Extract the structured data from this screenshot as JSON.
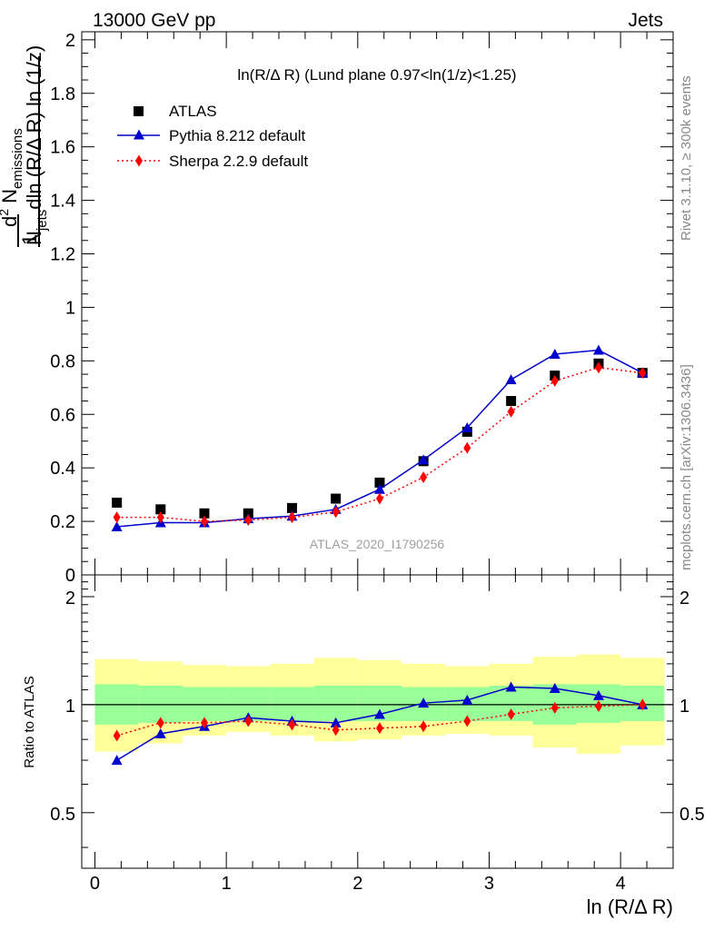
{
  "header": {
    "energy": "13000 GeV pp",
    "category": "Jets"
  },
  "side_labels": {
    "rivet": "Rivet 3.1.10, ≥ 300k events",
    "mcplots": "mcplots.cern.ch [arXiv:1306.3436]"
  },
  "watermark": "ATLAS_2020_I1790256",
  "chart_data": [
    {
      "type": "scatter",
      "title": "ln(R/Δ R) (Lund plane 0.97<ln(1/z)<1.25)",
      "ylabel": "1/N_jets d²N_emissions / dln(R/Δ R) ln(1/z)",
      "ylim": [
        0,
        2.03
      ],
      "xlim": [
        -0.1,
        4.4
      ],
      "yticks": [
        0,
        0.2,
        0.4,
        0.6,
        0.8,
        1,
        1.2,
        1.4,
        1.6,
        1.8,
        2
      ],
      "grid": false,
      "legend_position": "top-left",
      "x": [
        0.167,
        0.5,
        0.833,
        1.167,
        1.5,
        1.833,
        2.167,
        2.5,
        2.833,
        3.167,
        3.5,
        3.833,
        4.167
      ],
      "series": [
        {
          "name": "ATLAS",
          "color": "#000000",
          "marker": "square",
          "values": [
            0.27,
            0.245,
            0.23,
            0.23,
            0.25,
            0.285,
            0.345,
            0.425,
            0.535,
            0.65,
            0.745,
            0.79,
            0.755
          ]
        },
        {
          "name": "Pythia 8.212 default",
          "color": "#0000cc",
          "marker": "triangle",
          "line": "solid",
          "values": [
            0.18,
            0.195,
            0.195,
            0.21,
            0.22,
            0.245,
            0.32,
            0.43,
            0.55,
            0.73,
            0.825,
            0.84,
            0.755
          ]
        },
        {
          "name": "Sherpa 2.2.9 default",
          "color": "#ff0000",
          "marker": "diamond",
          "line": "dotted",
          "values": [
            0.215,
            0.215,
            0.2,
            0.205,
            0.215,
            0.235,
            0.285,
            0.365,
            0.475,
            0.61,
            0.725,
            0.775,
            0.755
          ]
        }
      ]
    },
    {
      "type": "line",
      "ylabel": "Ratio to ATLAS",
      "xlabel": "ln (R/Δ R)",
      "ylim": [
        0.35,
        2.3
      ],
      "xlim": [
        -0.1,
        4.4
      ],
      "xticks": [
        0,
        1,
        2,
        3,
        4
      ],
      "yticks": [
        0.5,
        1,
        2
      ],
      "reference_line": 1,
      "bins": [
        [
          0,
          0.333
        ],
        [
          0.333,
          0.667
        ],
        [
          0.667,
          1
        ],
        [
          1,
          1.333
        ],
        [
          1.333,
          1.667
        ],
        [
          1.667,
          2
        ],
        [
          2,
          2.333
        ],
        [
          2.333,
          2.667
        ],
        [
          2.667,
          3
        ],
        [
          3,
          3.333
        ],
        [
          3.333,
          3.667
        ],
        [
          3.667,
          4
        ],
        [
          4,
          4.333
        ]
      ],
      "band_inner": {
        "color": "#99ff99",
        "low": [
          0.88,
          0.89,
          0.9,
          0.9,
          0.9,
          0.9,
          0.9,
          0.9,
          0.9,
          0.9,
          0.88,
          0.89,
          0.9
        ],
        "high": [
          1.14,
          1.13,
          1.12,
          1.12,
          1.12,
          1.13,
          1.13,
          1.12,
          1.12,
          1.13,
          1.14,
          1.14,
          1.13
        ]
      },
      "band_outer": {
        "color": "#ffff99",
        "low": [
          0.74,
          0.78,
          0.82,
          0.84,
          0.82,
          0.79,
          0.8,
          0.82,
          0.83,
          0.82,
          0.76,
          0.73,
          0.77
        ],
        "high": [
          1.34,
          1.32,
          1.29,
          1.28,
          1.3,
          1.35,
          1.33,
          1.3,
          1.28,
          1.3,
          1.36,
          1.38,
          1.35
        ]
      },
      "x": [
        0.167,
        0.5,
        0.833,
        1.167,
        1.5,
        1.833,
        2.167,
        2.5,
        2.833,
        3.167,
        3.5,
        3.833,
        4.167
      ],
      "series": [
        {
          "name": "Pythia 8.212 default",
          "color": "#0000cc",
          "marker": "triangle",
          "line": "solid",
          "values": [
            0.7,
            0.83,
            0.87,
            0.92,
            0.9,
            0.89,
            0.94,
            1.01,
            1.03,
            1.12,
            1.11,
            1.06,
            1.0
          ]
        },
        {
          "name": "Sherpa 2.2.9 default",
          "color": "#ff0000",
          "marker": "diamond",
          "line": "dotted",
          "values": [
            0.82,
            0.89,
            0.89,
            0.9,
            0.88,
            0.85,
            0.86,
            0.87,
            0.9,
            0.94,
            0.98,
            0.99,
            1.0
          ]
        }
      ]
    }
  ]
}
